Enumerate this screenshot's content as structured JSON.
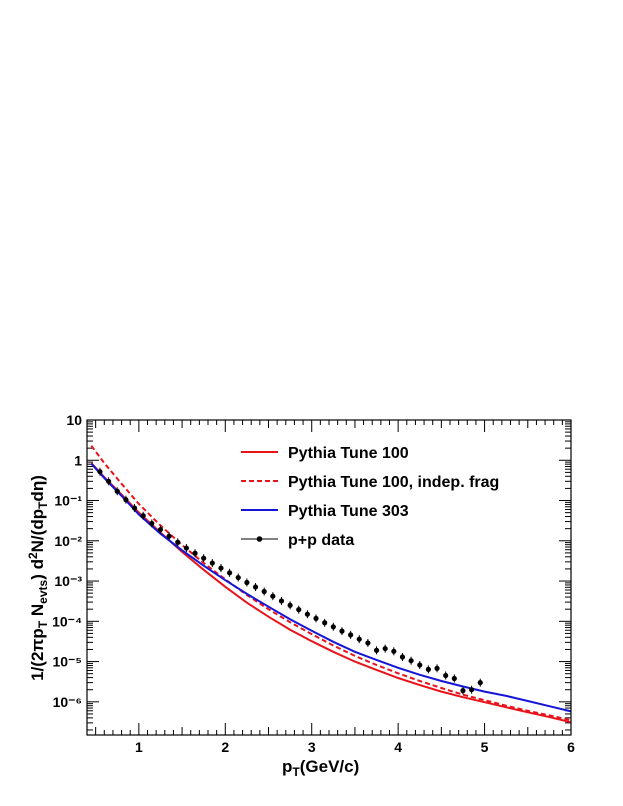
{
  "chart_data": {
    "type": "line",
    "xlabel": "p_T(GeV/c)",
    "ylabel": "1/(2πp_T N_evts) d²N/(dp_T dη)",
    "xlim": [
      0.4,
      6.0
    ],
    "ylim": [
      1.5e-07,
      10
    ],
    "yscale": "log",
    "x_ticks": [
      "1",
      "2",
      "3",
      "4",
      "5",
      "6"
    ],
    "y_ticks": [
      "10",
      "1",
      "10⁻¹",
      "10⁻²",
      "10⁻³",
      "10⁻⁴",
      "10⁻⁵",
      "10⁻⁶"
    ],
    "legend_position": "top-right",
    "series": [
      {
        "name": "Pythia Tune 100",
        "style": "solid",
        "color": "#e8141b",
        "x": [
          0.45,
          0.6,
          0.8,
          1.0,
          1.25,
          1.5,
          1.75,
          2.0,
          2.25,
          2.5,
          2.75,
          3.0,
          3.25,
          3.5,
          3.75,
          4.0,
          4.25,
          4.5,
          4.75,
          5.0,
          5.25,
          5.5,
          5.75,
          6.0
        ],
        "y": [
          0.85,
          0.38,
          0.14,
          0.05,
          0.016,
          0.0053,
          0.0019,
          0.00072,
          0.00029,
          0.00013,
          6.2e-05,
          3.2e-05,
          1.75e-05,
          1e-05,
          6.2e-06,
          3.9e-06,
          2.6e-06,
          1.8e-06,
          1.3e-06,
          9.8e-07,
          7.3e-07,
          5.5e-07,
          4.2e-07,
          3.1e-07
        ]
      },
      {
        "name": "Pythia Tune 100, indep. frag",
        "style": "dashed",
        "color": "#e8141b",
        "x": [
          0.45,
          0.6,
          0.8,
          1.0,
          1.25,
          1.5,
          1.75,
          2.0,
          2.25,
          2.5,
          2.75,
          3.0,
          3.25,
          3.5,
          3.75,
          4.0,
          4.25,
          4.5,
          4.75,
          5.0,
          5.25,
          5.5,
          5.75,
          6.0
        ],
        "y": [
          2.3,
          0.85,
          0.26,
          0.082,
          0.024,
          0.0078,
          0.0028,
          0.0011,
          0.00045,
          0.0002,
          9.5e-05,
          4.8e-05,
          2.5e-05,
          1.38e-05,
          8.2e-06,
          5.1e-06,
          3.3e-06,
          2.2e-06,
          1.5e-06,
          1.1e-06,
          8e-07,
          6e-07,
          4.6e-07,
          3.5e-07
        ]
      },
      {
        "name": "Pythia Tune 303",
        "style": "solid",
        "color": "#1515d8",
        "x": [
          0.45,
          0.6,
          0.8,
          1.0,
          1.25,
          1.5,
          1.75,
          2.0,
          2.25,
          2.5,
          2.75,
          3.0,
          3.25,
          3.5,
          3.75,
          4.0,
          4.25,
          4.5,
          4.75,
          5.0,
          5.25,
          5.5,
          5.75,
          6.0
        ],
        "y": [
          0.82,
          0.36,
          0.13,
          0.045,
          0.015,
          0.0058,
          0.0024,
          0.00105,
          0.00048,
          0.00023,
          0.000112,
          5.8e-05,
          3.1e-05,
          1.75e-05,
          1.1e-05,
          7e-06,
          4.7e-06,
          3.3e-06,
          2.4e-06,
          1.8e-06,
          1.4e-06,
          1.05e-06,
          7.8e-07,
          5.8e-07
        ]
      },
      {
        "name": "p+p data",
        "style": "markers",
        "color": "#000000",
        "x": [
          0.55,
          0.65,
          0.75,
          0.85,
          0.95,
          1.05,
          1.15,
          1.25,
          1.35,
          1.45,
          1.55,
          1.65,
          1.75,
          1.85,
          1.95,
          2.05,
          2.15,
          2.25,
          2.35,
          2.45,
          2.55,
          2.65,
          2.75,
          2.85,
          2.95,
          3.05,
          3.15,
          3.25,
          3.35,
          3.45,
          3.55,
          3.65,
          3.75,
          3.85,
          3.95,
          4.05,
          4.15,
          4.25,
          4.35,
          4.45,
          4.55,
          4.65,
          4.75,
          4.85,
          4.95
        ],
        "y": [
          0.52,
          0.3,
          0.17,
          0.105,
          0.065,
          0.042,
          0.027,
          0.019,
          0.013,
          0.0092,
          0.0066,
          0.0049,
          0.0037,
          0.0028,
          0.0021,
          0.0016,
          0.00122,
          0.00092,
          0.00071,
          0.00055,
          0.00042,
          0.00032,
          0.00025,
          0.000195,
          0.00015,
          0.000118,
          9.2e-05,
          7.3e-05,
          5.7e-05,
          4.6e-05,
          3.6e-05,
          2.9e-05,
          1.9e-05,
          2.1e-05,
          1.8e-05,
          1.3e-05,
          1.05e-05,
          8.2e-06,
          6.4e-06,
          6.8e-06,
          4.5e-06,
          3.8e-06,
          1.9e-06,
          2e-06,
          3e-06
        ]
      }
    ]
  }
}
